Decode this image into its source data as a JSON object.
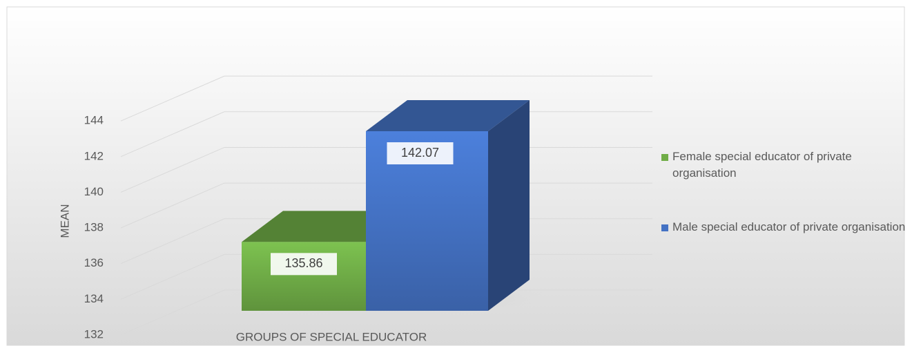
{
  "chart_data": {
    "type": "bar3d",
    "categories": [
      "GROUPS OF SPECIAL EDUCATOR"
    ],
    "x_label": "GROUPS OF SPECIAL EDUCATOR",
    "y_label": "MEAN",
    "series": [
      {
        "name": "Female special educator of private organisation",
        "color": "#70ad47",
        "values": [
          135.86
        ]
      },
      {
        "name": "Male special educator of  private organisation",
        "color": "#4472c4",
        "values": [
          142.07
        ]
      }
    ],
    "ylim": [
      132,
      144
    ],
    "yticks": [
      132,
      134,
      136,
      138,
      140,
      142,
      144
    ],
    "grid": true,
    "legend": "right"
  }
}
